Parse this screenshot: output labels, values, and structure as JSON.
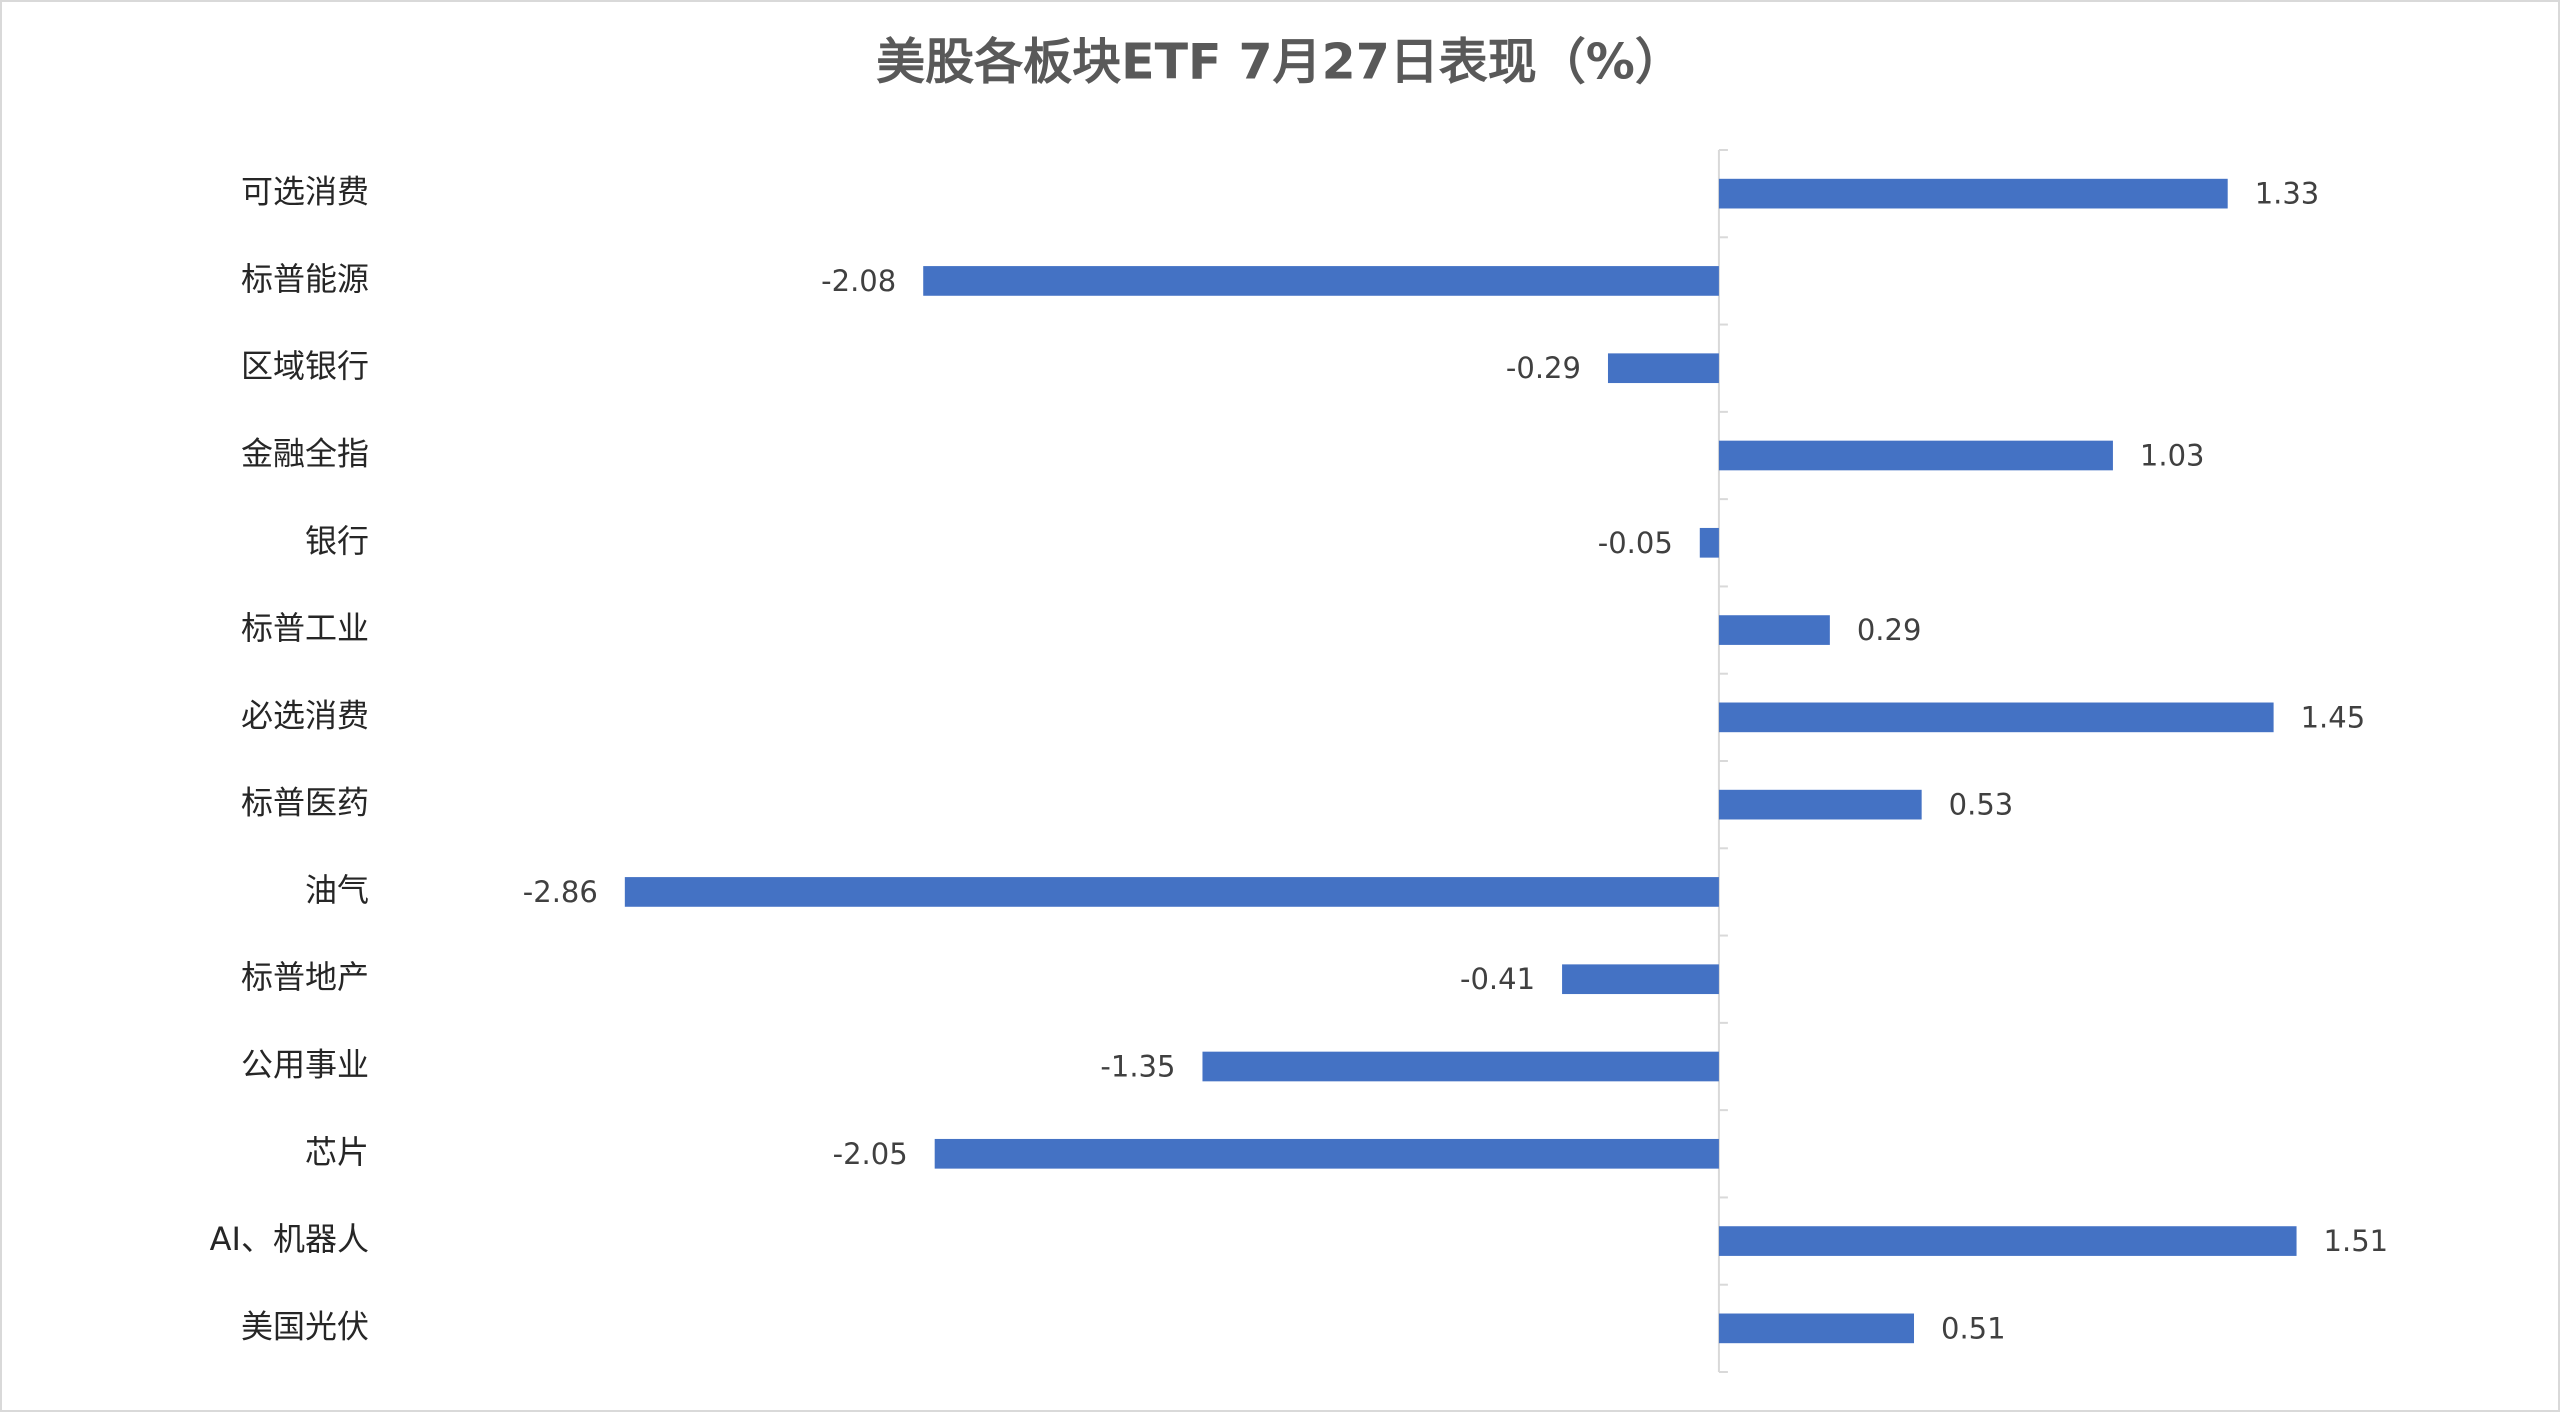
{
  "chart_data": {
    "type": "barh",
    "title": "美股各板块ETF  7月27日表现（%）",
    "categories": [
      "可选消费",
      "标普能源",
      "区域银行",
      "金融全指",
      "银行",
      "标普工业",
      "必选消费",
      "标普医药",
      "油气",
      "标普地产",
      "公用事业",
      "芯片",
      "AI、机器人",
      "美国光伏"
    ],
    "values": [
      1.33,
      -2.08,
      -0.29,
      1.03,
      -0.05,
      0.29,
      1.45,
      0.53,
      -2.86,
      -0.41,
      -1.35,
      -2.05,
      1.51,
      0.51
    ],
    "color": "#4472c4",
    "xlim": [
      -3.5,
      2
    ]
  }
}
